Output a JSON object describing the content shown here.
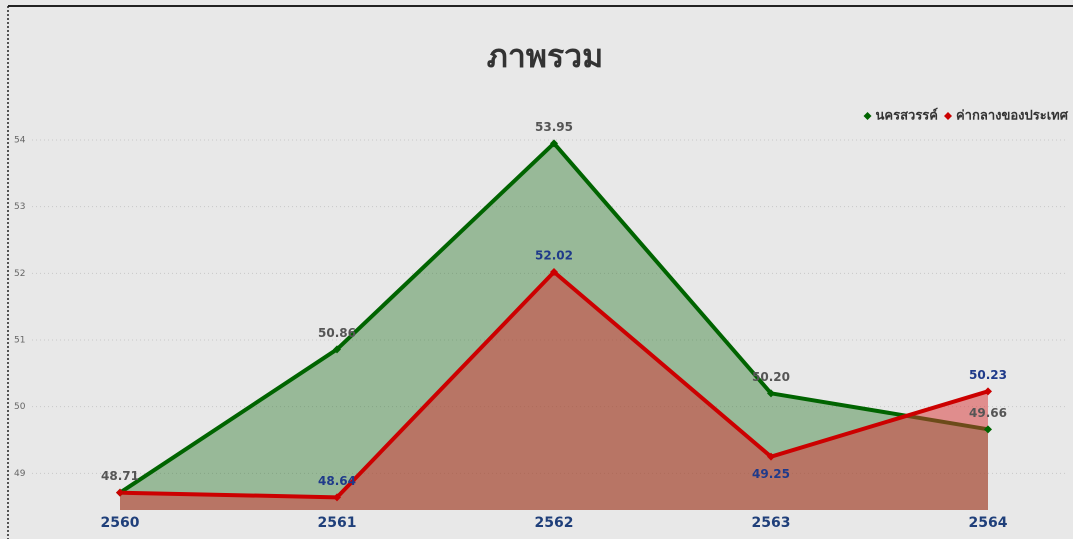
{
  "chart_data": {
    "type": "area",
    "title": "ภาพรวม",
    "categories": [
      "2560",
      "2561",
      "2562",
      "2563",
      "2564"
    ],
    "series": [
      {
        "name": "นครสวรรค์",
        "color": "#006400",
        "values": [
          48.71,
          50.86,
          53.95,
          50.2,
          49.66
        ],
        "value_labels": [
          "48.71",
          "50.86",
          "53.95",
          "50.20",
          "49.66"
        ]
      },
      {
        "name": "ค่ากลางของประเทศ",
        "color": "#cc0000",
        "values": [
          48.71,
          48.64,
          52.02,
          49.25,
          50.23
        ],
        "value_labels": [
          null,
          "48.64",
          "52.02",
          "49.25",
          "50.23"
        ]
      }
    ],
    "ylim": [
      48.45,
      54.6
    ],
    "yticks": [
      49,
      50,
      51,
      52,
      53,
      54
    ],
    "grid": true,
    "legend": "top-right"
  }
}
